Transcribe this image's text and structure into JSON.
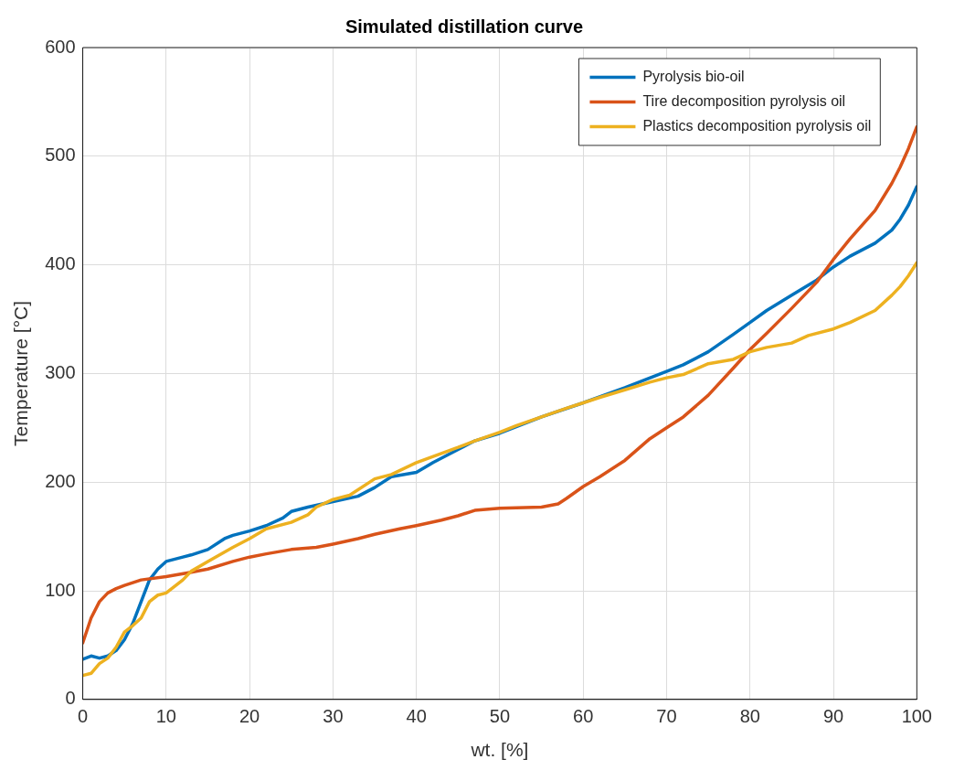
{
  "chart_data": {
    "type": "line",
    "title": "Simulated distillation curve",
    "xlabel": "wt. [%]",
    "ylabel": "Temperature [°C]",
    "xlim": [
      0,
      100
    ],
    "xticks": [
      0,
      10,
      20,
      30,
      40,
      50,
      60,
      70,
      80,
      90,
      100
    ],
    "ylim": [
      0,
      600
    ],
    "yticks": [
      0,
      100,
      200,
      300,
      400,
      500,
      600
    ],
    "grid": true,
    "legend": "top right",
    "marker": "none",
    "line_style": "solid",
    "series": [
      {
        "name": "Pyrolysis bio-oil",
        "color": "#0072bd",
        "x": [
          0,
          1,
          2,
          3,
          4,
          5,
          6,
          7,
          8,
          9,
          10,
          12,
          13,
          15,
          17,
          18,
          20,
          22,
          24,
          25,
          27,
          30,
          33,
          35,
          37,
          40,
          42,
          45,
          47,
          50,
          55,
          60,
          65,
          70,
          72,
          75,
          78,
          80,
          82,
          85,
          88,
          90,
          92,
          95,
          97,
          98,
          99,
          100
        ],
        "values": [
          37,
          40,
          38,
          40,
          45,
          55,
          70,
          90,
          110,
          120,
          127,
          131,
          133,
          138,
          148,
          151,
          155,
          160,
          167,
          173,
          177,
          182,
          187,
          195,
          205,
          209,
          218,
          230,
          238,
          245,
          260,
          273,
          287,
          302,
          308,
          320,
          336,
          347,
          358,
          372,
          386,
          398,
          408,
          420,
          432,
          442,
          455,
          472
        ]
      },
      {
        "name": "Tire decomposition pyrolysis oil",
        "color": "#d95319",
        "x": [
          0,
          1,
          2,
          3,
          4,
          5,
          7,
          10,
          13,
          15,
          18,
          20,
          22,
          25,
          28,
          30,
          33,
          35,
          38,
          40,
          43,
          45,
          47,
          50,
          55,
          57,
          58,
          60,
          62,
          65,
          68,
          70,
          72,
          75,
          78,
          80,
          82,
          85,
          88,
          90,
          92,
          95,
          97,
          98,
          99,
          100
        ],
        "values": [
          52,
          75,
          90,
          98,
          102,
          105,
          110,
          113,
          117,
          120,
          127,
          131,
          134,
          138,
          140,
          143,
          148,
          152,
          157,
          160,
          165,
          169,
          174,
          176,
          177,
          180,
          185,
          196,
          205,
          220,
          240,
          250,
          260,
          280,
          305,
          322,
          337,
          360,
          384,
          405,
          424,
          450,
          475,
          490,
          507,
          527
        ]
      },
      {
        "name": "Plastics decomposition pyrolysis oil",
        "color": "#edb120",
        "x": [
          0,
          1,
          2,
          3,
          4,
          5,
          6,
          7,
          8,
          9,
          10,
          12,
          13,
          15,
          18,
          20,
          22,
          25,
          27,
          28,
          30,
          32,
          35,
          37,
          40,
          45,
          47,
          50,
          52,
          55,
          58,
          60,
          62,
          65,
          68,
          70,
          72,
          75,
          78,
          80,
          82,
          85,
          87,
          90,
          92,
          95,
          97,
          98,
          99,
          100
        ],
        "values": [
          22,
          24,
          33,
          38,
          48,
          62,
          68,
          75,
          90,
          96,
          98,
          110,
          118,
          127,
          140,
          148,
          157,
          163,
          170,
          177,
          184,
          188,
          203,
          207,
          218,
          232,
          238,
          246,
          252,
          260,
          268,
          273,
          278,
          285,
          292,
          296,
          299,
          309,
          313,
          320,
          324,
          328,
          335,
          341,
          347,
          358,
          372,
          380,
          390,
          402
        ]
      }
    ]
  }
}
